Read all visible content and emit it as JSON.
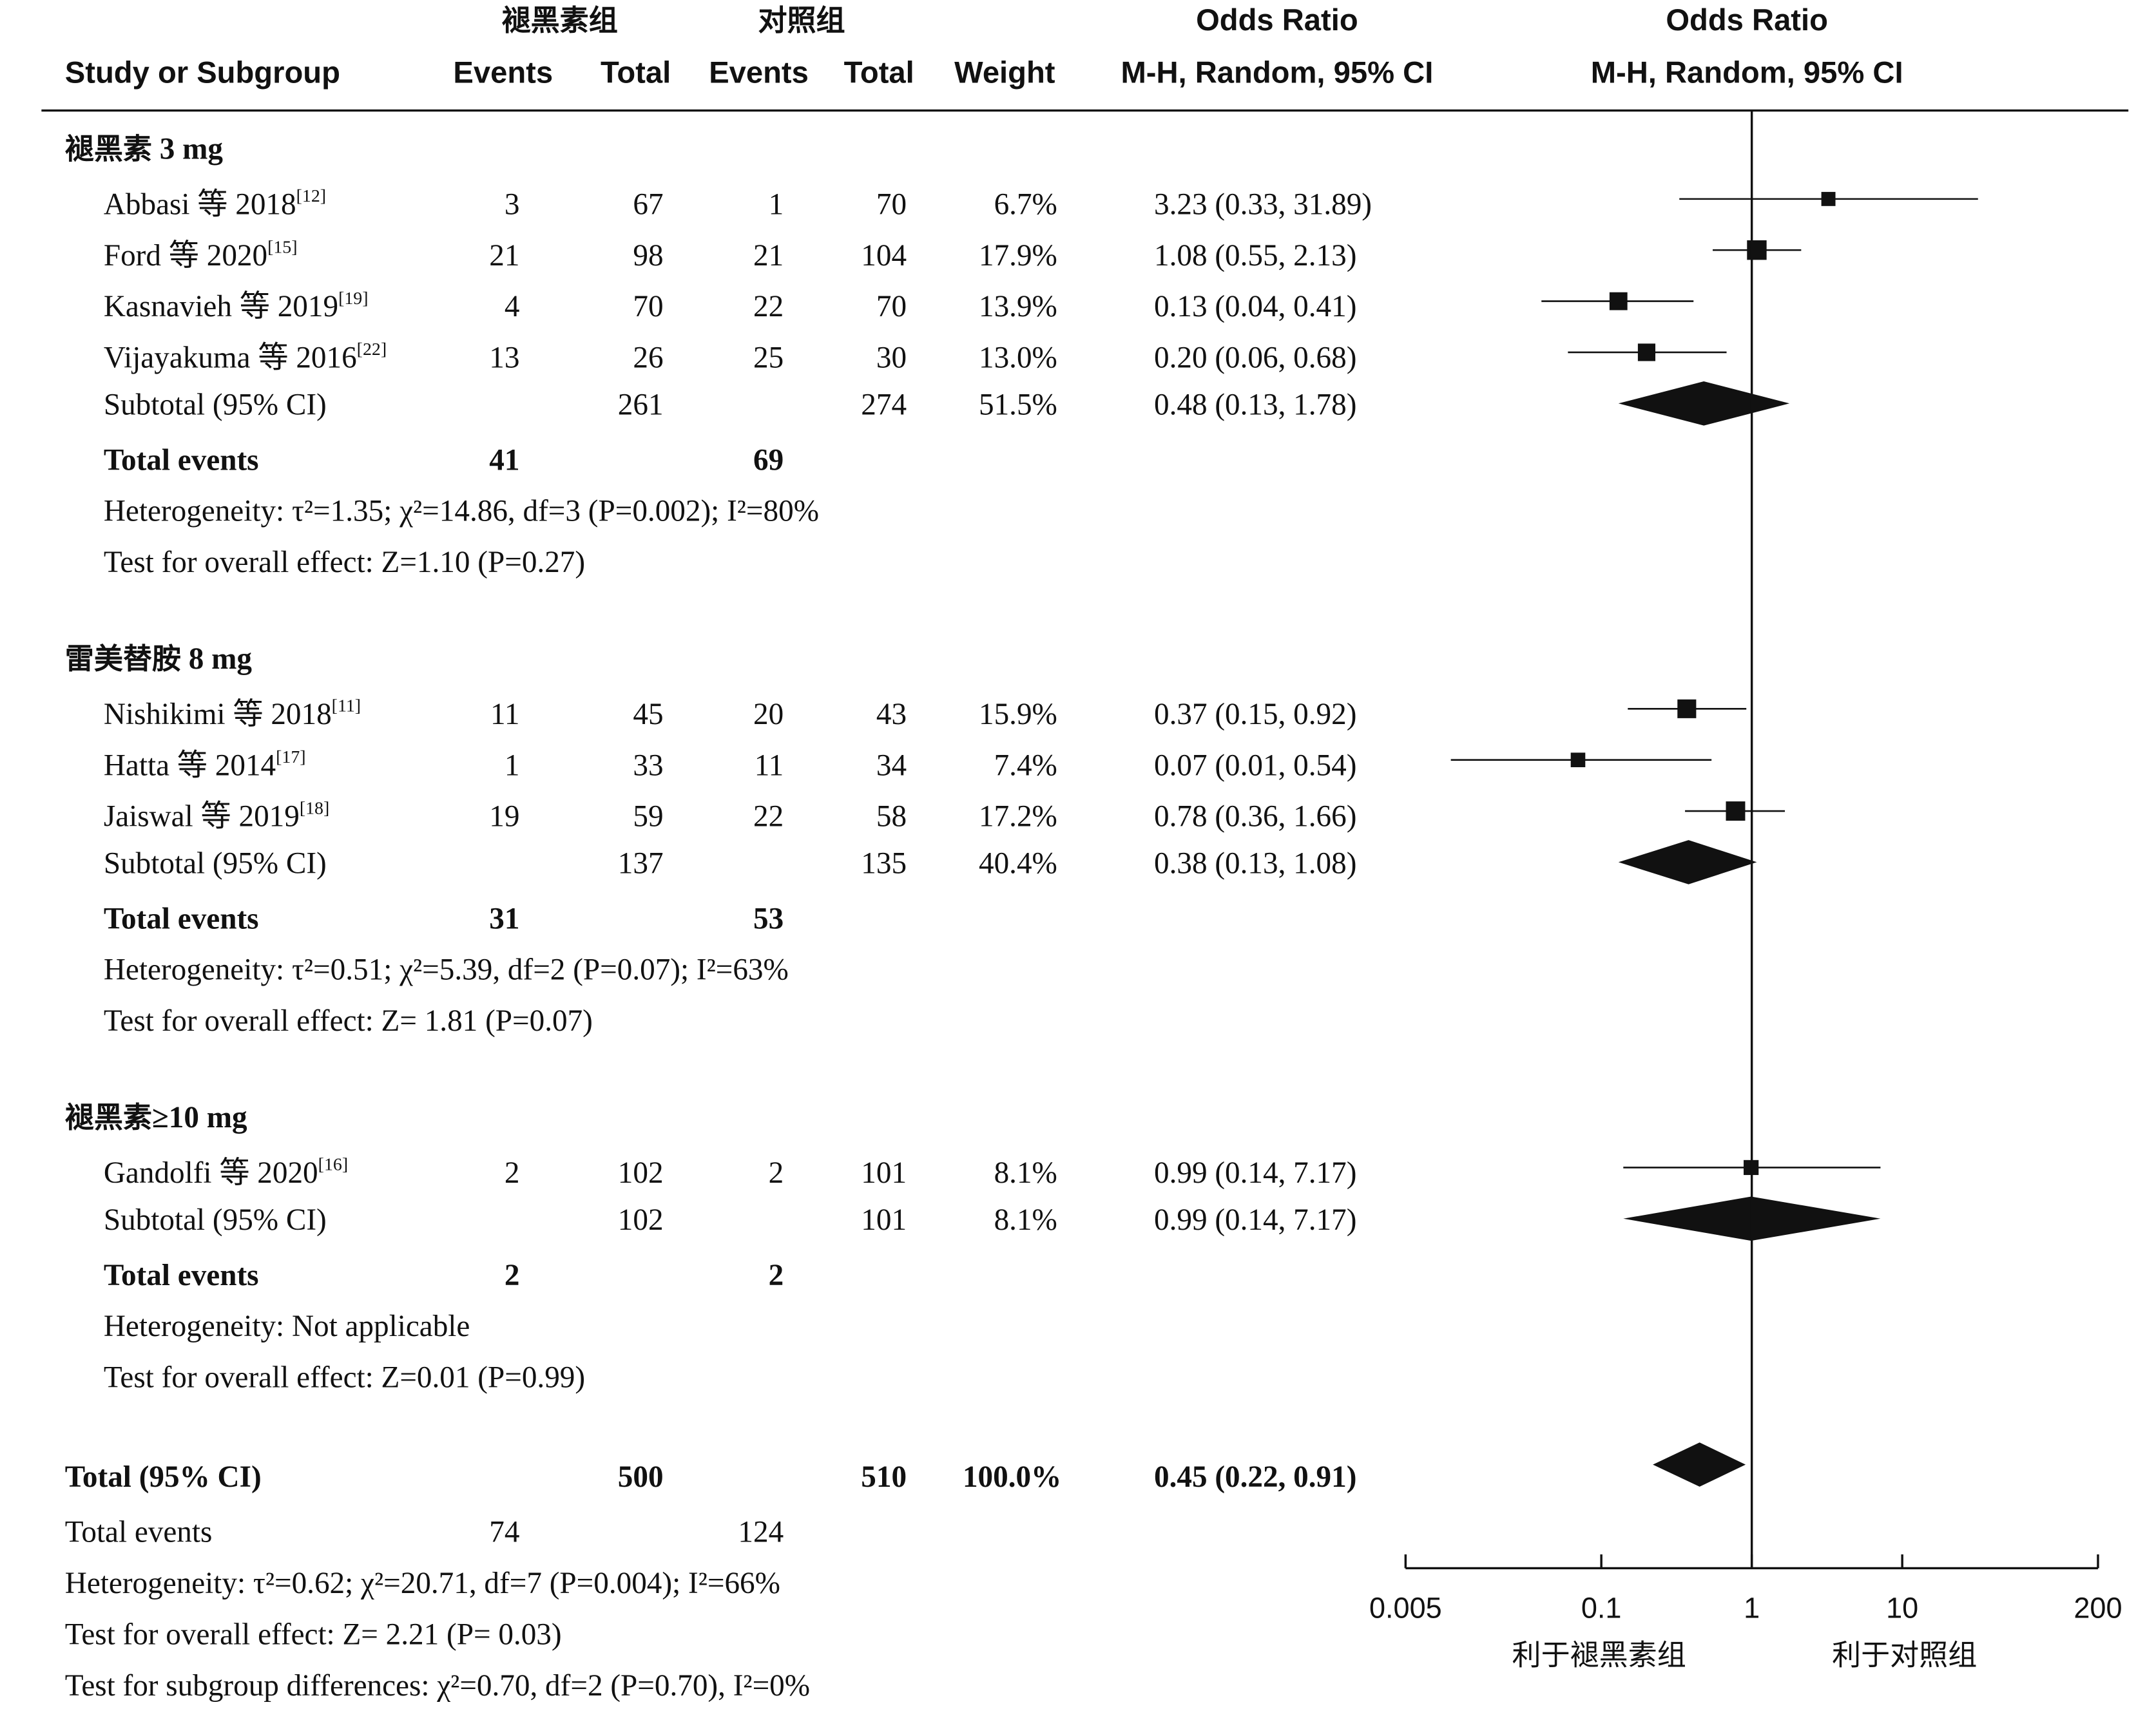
{
  "headers": {
    "exp_group": "褪黑素组",
    "ctrl_group": "对照组",
    "or_title_left": "Odds Ratio",
    "or_title_right": "Odds Ratio",
    "study": "Study or Subgroup",
    "events1": "Events",
    "total1": "Total",
    "events2": "Events",
    "total2": "Total",
    "weight": "Weight",
    "method_left": "M-H, Random, 95% CI",
    "method_right": "M-H, Random, 95% CI"
  },
  "chart_data": {
    "type": "forest",
    "scale": "log",
    "xlim": [
      0.005,
      200
    ],
    "xticks": [
      "0.005",
      "0.1",
      "1",
      "10",
      "200"
    ],
    "null_value": 1,
    "favours_left": "利于褪黑素组",
    "favours_right": "利于对照组",
    "subgroups": [
      {
        "title_cjk": "褪黑素",
        "title_rest": " 3 mg",
        "studies": [
          {
            "name": "Abbasi 等 2018",
            "ref": "[12]",
            "e1": "3",
            "t1": "67",
            "e2": "1",
            "t2": "70",
            "weight": "6.7%",
            "ci_text": "3.23 (0.33, 31.89)",
            "or": 3.23,
            "lo": 0.33,
            "hi": 31.89
          },
          {
            "name": "Ford 等 2020",
            "ref": "[15]",
            "e1": "21",
            "t1": "98",
            "e2": "21",
            "t2": "104",
            "weight": "17.9%",
            "ci_text": "1.08 (0.55, 2.13)",
            "or": 1.08,
            "lo": 0.55,
            "hi": 2.13
          },
          {
            "name": "Kasnavieh 等 2019",
            "ref": "[19]",
            "e1": "4",
            "t1": "70",
            "e2": "22",
            "t2": "70",
            "weight": "13.9%",
            "ci_text": "0.13 (0.04, 0.41)",
            "or": 0.13,
            "lo": 0.04,
            "hi": 0.41
          },
          {
            "name": "Vijayakuma 等 2016",
            "ref": "[22]",
            "e1": "13",
            "t1": "26",
            "e2": "25",
            "t2": "30",
            "weight": "13.0%",
            "ci_text": "0.20 (0.06, 0.68)",
            "or": 0.2,
            "lo": 0.06,
            "hi": 0.68
          }
        ],
        "subtotal": {
          "label": "Subtotal (95% CI)",
          "t1": "261",
          "t2": "274",
          "weight": "51.5%",
          "ci_text": "0.48 (0.13, 1.78)",
          "or": 0.48,
          "lo": 0.13,
          "hi": 1.78
        },
        "total_events": {
          "label": "Total events",
          "e1": "41",
          "e2": "69"
        },
        "heterogeneity": "Heterogeneity: τ²=1.35; χ²=14.86, df=3 (P=0.002); I²=80%",
        "overall": "Test for overall effect: Z=1.10 (P=0.27)"
      },
      {
        "title_cjk": "雷美替胺",
        "title_rest": " 8 mg",
        "studies": [
          {
            "name": "Nishikimi 等 2018",
            "ref": "[11]",
            "e1": "11",
            "t1": "45",
            "e2": "20",
            "t2": "43",
            "weight": "15.9%",
            "ci_text": "0.37 (0.15, 0.92)",
            "or": 0.37,
            "lo": 0.15,
            "hi": 0.92
          },
          {
            "name": "Hatta 等 2014",
            "ref": "[17]",
            "e1": "1",
            "t1": "33",
            "e2": "11",
            "t2": "34",
            "weight": "7.4%",
            "ci_text": "0.07 (0.01, 0.54)",
            "or": 0.07,
            "lo": 0.01,
            "hi": 0.54
          },
          {
            "name": "Jaiswal 等 2019",
            "ref": "[18]",
            "e1": "19",
            "t1": "59",
            "e2": "22",
            "t2": "58",
            "weight": "17.2%",
            "ci_text": "0.78 (0.36, 1.66)",
            "or": 0.78,
            "lo": 0.36,
            "hi": 1.66
          }
        ],
        "subtotal": {
          "label": "Subtotal (95% CI)",
          "t1": "137",
          "t2": "135",
          "weight": "40.4%",
          "ci_text": "0.38 (0.13, 1.08)",
          "or": 0.38,
          "lo": 0.13,
          "hi": 1.08
        },
        "total_events": {
          "label": "Total events",
          "e1": "31",
          "e2": "53"
        },
        "heterogeneity": "Heterogeneity: τ²=0.51; χ²=5.39, df=2 (P=0.07); I²=63%",
        "overall": "Test for overall effect: Z= 1.81 (P=0.07)"
      },
      {
        "title_cjk": "褪黑素",
        "title_rest": "≥10 mg",
        "studies": [
          {
            "name": "Gandolfi 等 2020",
            "ref": "[16]",
            "e1": "2",
            "t1": "102",
            "e2": "2",
            "t2": "101",
            "weight": "8.1%",
            "ci_text": "0.99 (0.14, 7.17)",
            "or": 0.99,
            "lo": 0.14,
            "hi": 7.17
          }
        ],
        "subtotal": {
          "label": "Subtotal (95% CI)",
          "t1": "102",
          "t2": "101",
          "weight": "8.1%",
          "ci_text": "0.99 (0.14, 7.17)",
          "or": 0.99,
          "lo": 0.14,
          "hi": 7.17
        },
        "total_events": {
          "label": "Total events",
          "e1": "2",
          "e2": "2"
        },
        "heterogeneity": "Heterogeneity: Not applicable",
        "overall": "Test for overall effect: Z=0.01 (P=0.99)"
      }
    ],
    "overall": {
      "label": "Total (95% CI)",
      "t1": "500",
      "t2": "510",
      "weight": "100.0%",
      "ci_text": "0.45 (0.22, 0.91)",
      "or": 0.45,
      "lo": 0.22,
      "hi": 0.91,
      "events_label": "Total events",
      "e1": "74",
      "e2": "124",
      "heterogeneity": "Heterogeneity: τ²=0.62; χ²=20.71, df=7 (P=0.004); I²=66%",
      "overall": "Test for overall effect: Z= 2.21 (P= 0.03)",
      "subgroup_diff": "Test for subgroup differences: χ²=0.70, df=2 (P=0.70), I²=0%"
    }
  }
}
